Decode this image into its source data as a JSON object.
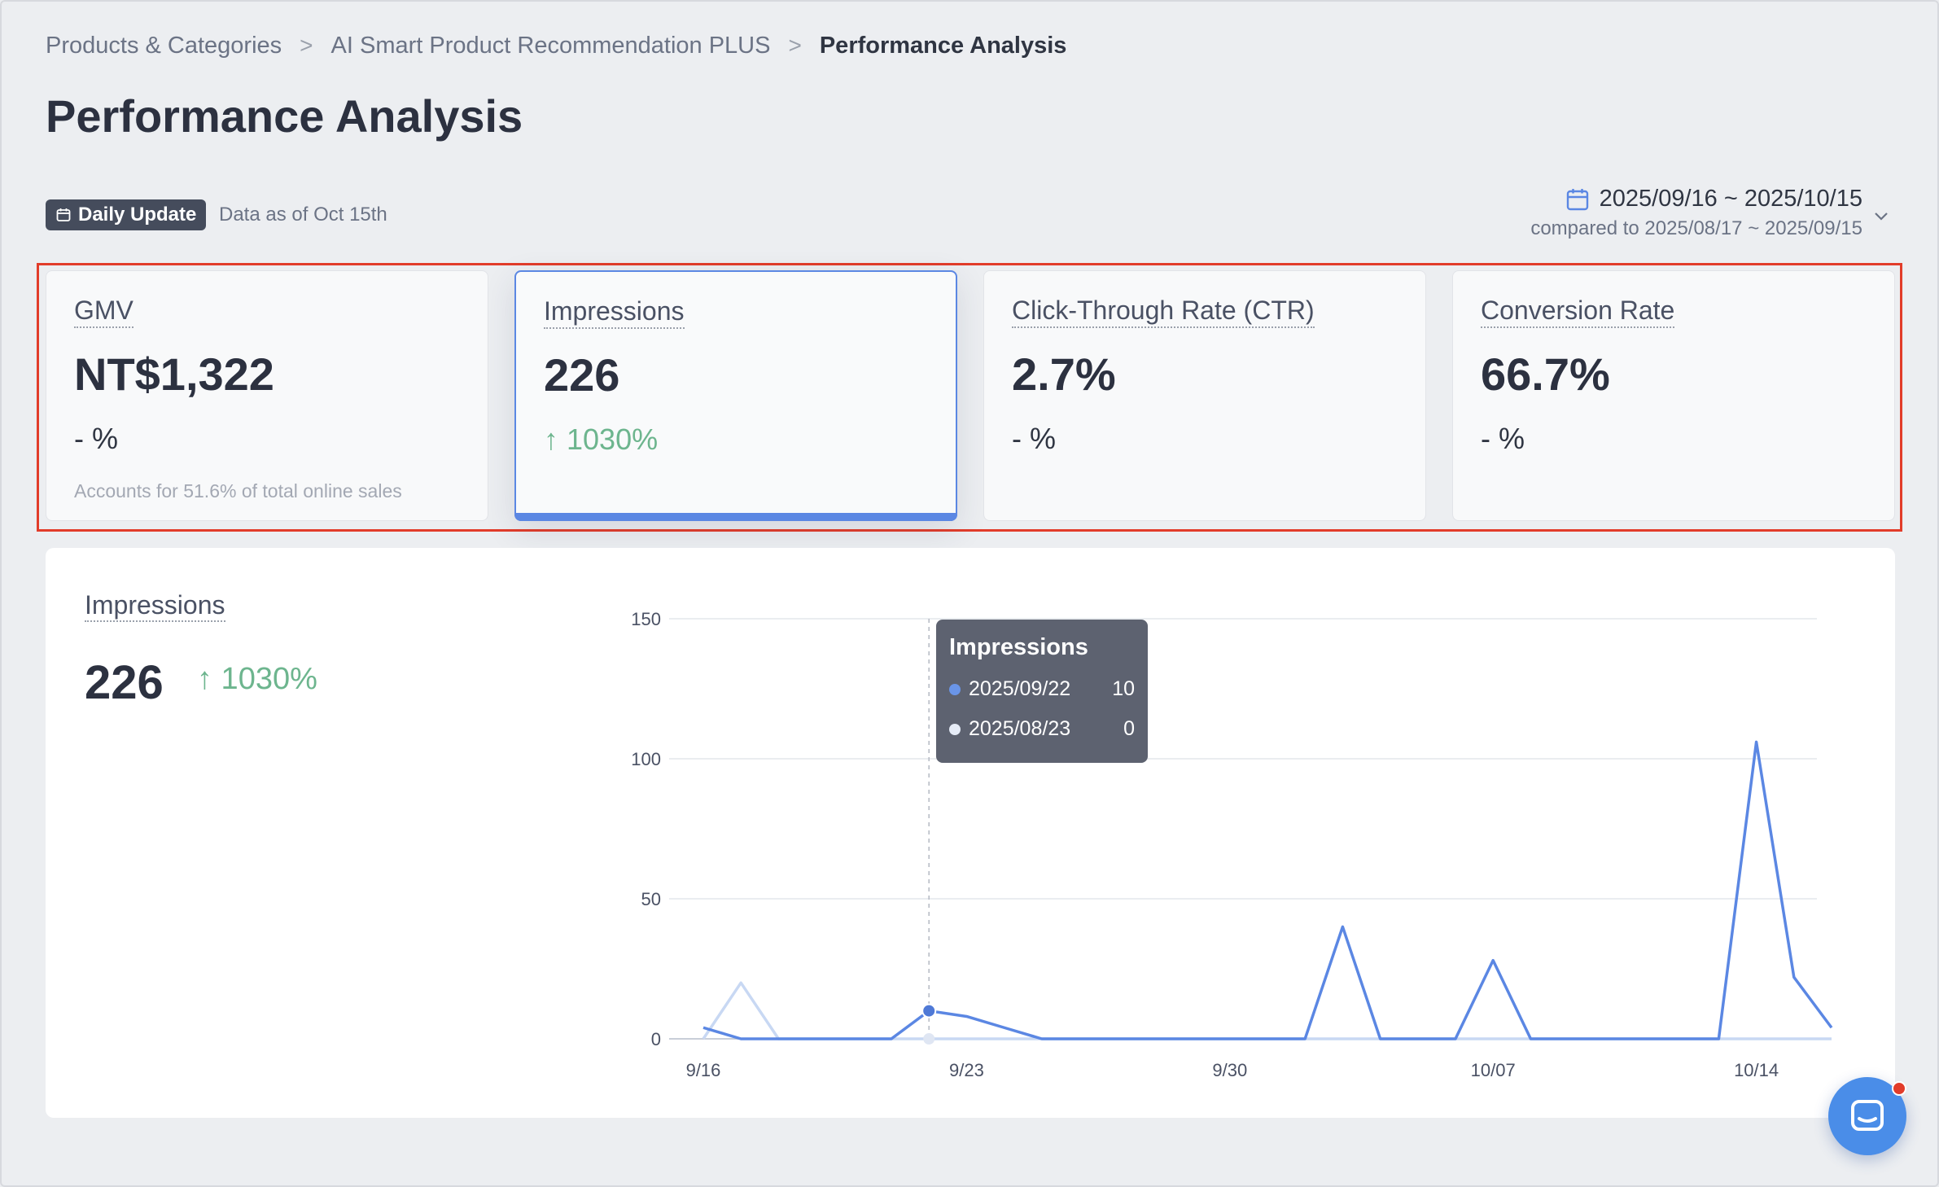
{
  "breadcrumb": {
    "items": [
      "Products & Categories",
      "AI Smart Product Recommendation PLUS"
    ],
    "current": "Performance Analysis",
    "separator": ">"
  },
  "page_title": "Performance Analysis",
  "update_badge": {
    "label": "Daily Update",
    "icon": "calendar-icon"
  },
  "data_as_of": "Data as of Oct 15th",
  "date_range": {
    "range": "2025/09/16 ~ 2025/10/15",
    "compare": "compared to 2025/08/17 ~ 2025/09/15",
    "icon": "calendar-icon"
  },
  "metrics": [
    {
      "label": "GMV",
      "value": "NT$1,322",
      "delta": "- %",
      "note": "Accounts for 51.6% of total online sales"
    },
    {
      "label": "Impressions",
      "value": "226",
      "delta": "↑ 1030%",
      "note": ""
    },
    {
      "label": "Click-Through Rate (CTR)",
      "value": "2.7%",
      "delta": "- %",
      "note": ""
    },
    {
      "label": "Conversion Rate",
      "value": "66.7%",
      "delta": "- %",
      "note": ""
    }
  ],
  "panel": {
    "label": "Impressions",
    "value": "226",
    "delta": "↑ 1030%"
  },
  "tooltip": {
    "title": "Impressions",
    "rows": [
      {
        "date": "2025/09/22",
        "value": "10"
      },
      {
        "date": "2025/08/23",
        "value": "0"
      }
    ]
  },
  "colors": {
    "accent": "#5b87e3",
    "positive": "#6db58e",
    "previous_series": "#c8d8f3",
    "highlight_border": "#e23c2a"
  },
  "chart_data": {
    "type": "line",
    "ylim": [
      0,
      150
    ],
    "yticks": [
      "0",
      "50",
      "100",
      "150"
    ],
    "xtick_labels": [
      {
        "label": "9/16",
        "index": 0
      },
      {
        "label": "9/23",
        "index": 7
      },
      {
        "label": "9/30",
        "index": 14
      },
      {
        "label": "10/07",
        "index": 21
      },
      {
        "label": "10/14",
        "index": 28
      }
    ],
    "series": [
      {
        "values": [
          4,
          0,
          0,
          0,
          0,
          0,
          10,
          8,
          4,
          0,
          0,
          0,
          0,
          0,
          0,
          0,
          0,
          40,
          0,
          0,
          0,
          28,
          0,
          0,
          0,
          0,
          0,
          0,
          106,
          22,
          4
        ]
      },
      {
        "values": [
          0,
          20,
          0,
          0,
          0,
          0,
          0,
          0,
          0,
          0,
          0,
          0,
          0,
          0,
          0,
          0,
          0,
          0,
          0,
          0,
          0,
          0,
          0,
          0,
          0,
          0,
          0,
          0,
          0,
          0,
          0
        ]
      }
    ],
    "grid": true,
    "hover_index": 6
  }
}
